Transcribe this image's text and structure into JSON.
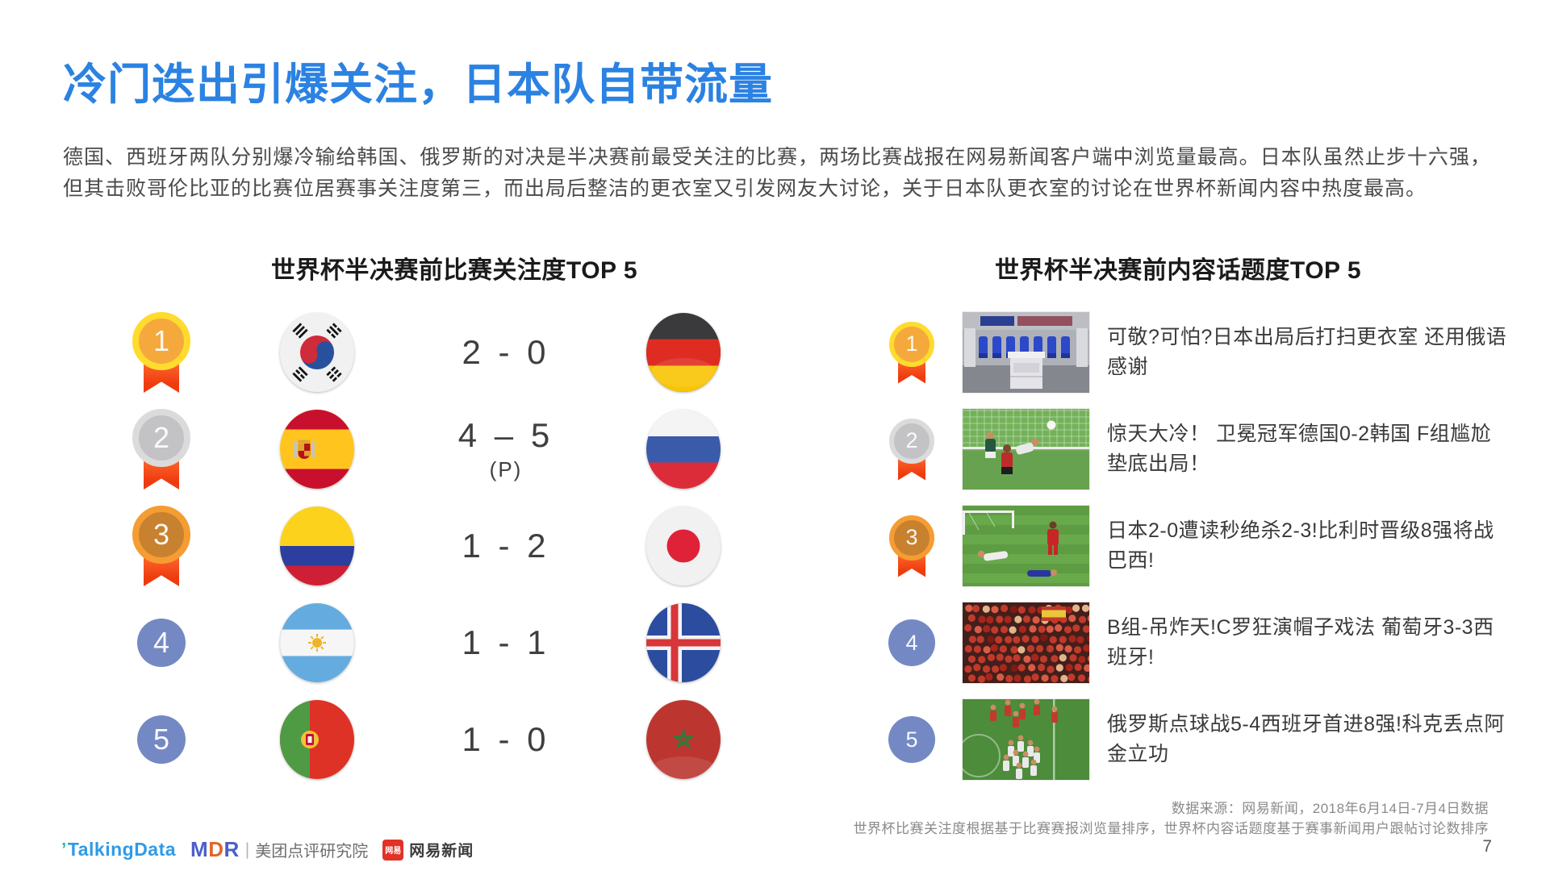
{
  "page": {
    "title": "冷门迭出引爆关注，日本队自带流量",
    "body_text": "德国、西班牙两队分别爆冷输给韩国、俄罗斯的对决是半决赛前最受关注的比赛，两场比赛战报在网易新闻客户端中浏览量最高。日本队虽然止步十六强，但其击败哥伦比亚的比赛位居赛事关注度第三，而出局后整洁的更衣室又引发网友大讨论，关于日本队更衣室的讨论在世界杯新闻内容中热度最高。",
    "page_number": "7"
  },
  "left_section": {
    "heading": "世界杯半决赛前比赛关注度TOP 5",
    "rows": [
      {
        "rank": "1",
        "medal": "gold",
        "team1": "south-korea",
        "score": "2 - 0",
        "score_note": "",
        "team2": "germany"
      },
      {
        "rank": "2",
        "medal": "silver",
        "team1": "spain",
        "score": "4 – 5",
        "score_note": "(P)",
        "team2": "russia"
      },
      {
        "rank": "3",
        "medal": "bronze",
        "team1": "colombia",
        "score": "1 - 2",
        "score_note": "",
        "team2": "japan"
      },
      {
        "rank": "4",
        "medal": "plain",
        "team1": "argentina",
        "score": "1 - 1",
        "score_note": "",
        "team2": "iceland"
      },
      {
        "rank": "5",
        "medal": "plain",
        "team1": "portugal",
        "score": "1 - 0",
        "score_note": "",
        "team2": "morocco"
      }
    ]
  },
  "right_section": {
    "heading": "世界杯半决赛前内容话题度TOP 5",
    "rows": [
      {
        "rank": "1",
        "medal": "gold",
        "thumbnail": "locker-room",
        "headline": "可敬?可怕?日本出局后打扫更衣室 还用俄语感谢"
      },
      {
        "rank": "2",
        "medal": "silver",
        "thumbnail": "goal-upset",
        "headline": "惊天大冷！ 卫冕冠军德国0-2韩国 F组尴尬垫底出局！"
      },
      {
        "rank": "3",
        "medal": "bronze",
        "thumbnail": "belgium-comeback",
        "headline": "日本2-0遭读秒绝杀2-3!比利时晋级8强将战巴西!"
      },
      {
        "rank": "4",
        "medal": "plain",
        "thumbnail": "red-crowd",
        "headline": "B组-吊炸天!C罗狂演帽子戏法 葡萄牙3-3西班牙!"
      },
      {
        "rank": "5",
        "medal": "plain",
        "thumbnail": "russia-celebration",
        "headline": "俄罗斯点球战5-4西班牙首进8强!科克丢点阿金立功"
      }
    ]
  },
  "footer": {
    "source_line1": "数据来源：网易新闻，2018年6月14日-7月4日数据",
    "source_line2": "世界杯比赛关注度根据基于比赛赛报浏览量排序，世界杯内容话题度基于赛事新闻用户跟帖讨论数排序",
    "logos": {
      "talkingdata": "TalkingData",
      "mdr": "MDR",
      "mdr_label": "美团点评研究院",
      "netease_badge": "网易",
      "netease_label": "网易新闻"
    }
  },
  "colors": {
    "title_blue": "#2B82E2",
    "heading_dark": "#1A1A1A",
    "body_gray": "#4A4A4A",
    "score_gray": "#3F3F3F",
    "rank_circle_blue": "#7489C4",
    "medal_gold_ring": "#FFDB2E",
    "medal_gold_fill": "#F5A93C",
    "medal_silver_ring": "#DBDBDB",
    "medal_silver_fill": "#C3C3C6",
    "medal_bronze_ring": "#F59C33",
    "medal_bronze_fill": "#C7812F",
    "ribbon_red": "#EE3B0F",
    "footer_gray": "#8A8A8A"
  }
}
